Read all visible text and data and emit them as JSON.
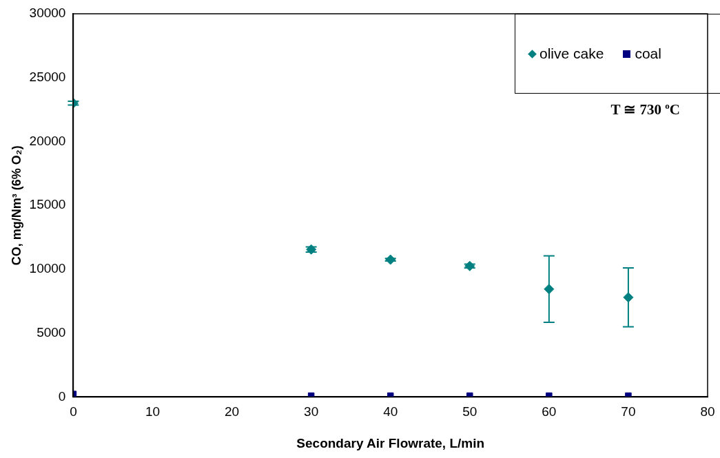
{
  "chart_data": {
    "type": "scatter",
    "xlabel": "Secondary Air Flowrate, L/min",
    "ylabel": "CO, mg/Nm³ (6% O₂)",
    "x": [
      0,
      30,
      40,
      50,
      60,
      70
    ],
    "series": [
      {
        "name": "olive cake",
        "color": "#008080",
        "marker": "diamond",
        "values": [
          23000,
          11550,
          10750,
          10250,
          8450,
          7800
        ],
        "errors": [
          150,
          200,
          100,
          150,
          2600,
          2300
        ]
      },
      {
        "name": "coal",
        "color": "#000080",
        "marker": "square",
        "values": [
          230,
          100,
          100,
          100,
          100,
          100
        ]
      }
    ],
    "xlim": [
      0,
      80
    ],
    "xticks": [
      0,
      10,
      20,
      30,
      40,
      50,
      60,
      70,
      80
    ],
    "ylim": [
      0,
      30000
    ],
    "yticks": [
      0,
      5000,
      10000,
      15000,
      20000,
      25000,
      30000
    ],
    "grid": false,
    "legend": "top right",
    "annotations": [
      "T ≅ 730 $^{o}$C"
    ]
  }
}
